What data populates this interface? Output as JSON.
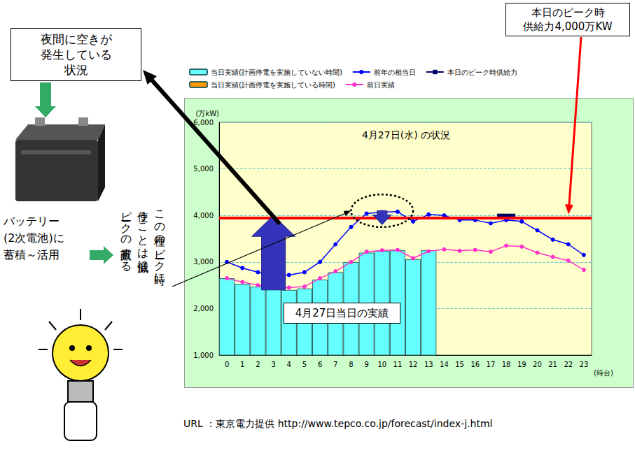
{
  "chart_data": {
    "type": "bar",
    "title": "4月27日(水) の状況",
    "y_label": "(万kW)",
    "x_label": "(時台)",
    "categories": [
      "0",
      "1",
      "2",
      "3",
      "4",
      "5",
      "6",
      "7",
      "8",
      "9",
      "10",
      "11",
      "12",
      "13",
      "14",
      "15",
      "16",
      "17",
      "18",
      "19",
      "20",
      "21",
      "22",
      "23"
    ],
    "ylim": [
      1000,
      6000
    ],
    "yticks": [
      {
        "value": 1000,
        "label": "1,000"
      },
      {
        "value": 2000,
        "label": "2,000"
      },
      {
        "value": 3000,
        "label": "3,000"
      },
      {
        "value": 4000,
        "label": "4,000"
      },
      {
        "value": 5000,
        "label": "5,000"
      },
      {
        "value": 6000,
        "label": "6,000"
      }
    ],
    "grid": true,
    "legend": "top",
    "series": [
      {
        "name": "当日実績(計画停電を実施していない時間)",
        "type": "bar",
        "color": "#66ffff",
        "values": [
          2650,
          2530,
          2470,
          2430,
          2400,
          2430,
          2620,
          2780,
          3000,
          3200,
          3240,
          3250,
          3060,
          3250,
          null,
          null,
          null,
          null,
          null,
          null,
          null,
          null,
          null,
          null
        ]
      },
      {
        "name": "前年の相当日",
        "type": "line",
        "color": "#0000ff",
        "marker": "circle",
        "values": [
          3000,
          2870,
          2780,
          2700,
          2720,
          2780,
          3000,
          3380,
          3750,
          4040,
          4070,
          4080,
          3870,
          4020,
          4000,
          3900,
          3900,
          3830,
          3900,
          3870,
          3680,
          3480,
          3380,
          3150
        ]
      },
      {
        "name": "本日のピーク時供給力",
        "type": "line",
        "color": "#000066",
        "marker": "dash",
        "values": [
          null,
          null,
          null,
          null,
          null,
          null,
          null,
          null,
          null,
          null,
          null,
          null,
          null,
          null,
          null,
          null,
          null,
          null,
          4000,
          null,
          null,
          null,
          null,
          null
        ]
      },
      {
        "name": "当日実績(計画停電を実施している時間)",
        "type": "bar",
        "color": "#ff9900",
        "values": [
          null,
          null,
          null,
          null,
          null,
          null,
          null,
          null,
          null,
          null,
          null,
          null,
          null,
          null,
          null,
          null,
          null,
          null,
          null,
          null,
          null,
          null,
          null,
          null
        ]
      },
      {
        "name": "前日実績",
        "type": "line",
        "color": "#ff33cc",
        "marker": "circle",
        "values": [
          2650,
          2570,
          2500,
          2450,
          2450,
          2470,
          2650,
          2800,
          3000,
          3220,
          3250,
          3260,
          3080,
          3230,
          3270,
          3240,
          3260,
          3220,
          3350,
          3330,
          3200,
          3110,
          3030,
          2830
        ]
      }
    ],
    "reference_line": {
      "value": 3950,
      "color": "#ff0000"
    },
    "annotations": {
      "supply_box": {
        "lines": [
          "本日のピーク時",
          "供給力4,000万KW"
        ]
      },
      "night_box": {
        "lines": [
          "夜間に空きが",
          "発生している",
          "状況"
        ]
      },
      "battery_text": {
        "lines": [
          "バッテリー",
          "(2次電池)に",
          "蓄積～活用"
        ]
      },
      "peak_text": {
        "lines": [
          "この種のピーク時に",
          "使うことは低減に",
          "ピークの貢献する"
        ]
      },
      "result_box": {
        "text": "4月27日当日の実績"
      },
      "source": "URL ：東京電力提供 http://www.tepco.co.jp/forecast/index-j.html",
      "gap_arrow": {
        "x": 3,
        "from": 2400,
        "to": 4000
      },
      "peak_arrow": {
        "x": 10,
        "from": 4100,
        "to": 3800
      },
      "peak_circle": {
        "x": 10,
        "y": 4100,
        "x_halfwidth": 2,
        "y_halfwidth": 350
      }
    }
  }
}
